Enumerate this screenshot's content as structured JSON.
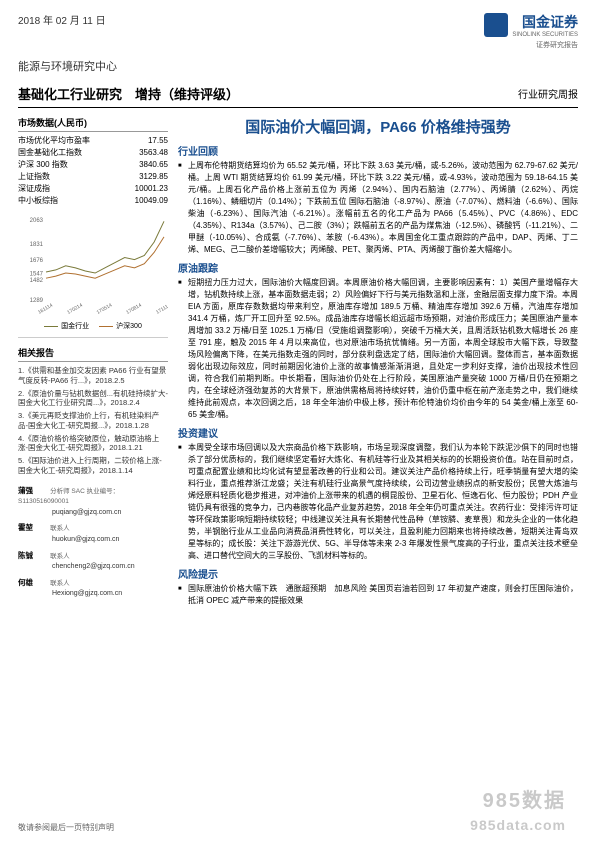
{
  "header": {
    "date": "2018 年 02 月 11 日",
    "logo_name": "国金证券",
    "logo_en": "SINOLINK SECURITIES",
    "logo_tag": "证券研究报告"
  },
  "center_name": "能源与环境研究中心",
  "title": "基础化工行业研究　增持（维持评级）",
  "report_type": "行业研究周报",
  "market": {
    "header": "市场数据(人民币)",
    "rows": [
      {
        "label": "市场优化平均市盈率",
        "value": "17.55"
      },
      {
        "label": "国金基础化工指数",
        "value": "3563.48"
      },
      {
        "label": "沪深 300 指数",
        "value": "3840.65"
      },
      {
        "label": "上证指数",
        "value": "3129.85"
      },
      {
        "label": "深证成指",
        "value": "10001.23"
      },
      {
        "label": "中小板综指",
        "value": "10049.09"
      }
    ]
  },
  "chart": {
    "ymin": 1289,
    "ymax": 2063,
    "yticks": [
      "2063",
      "1831",
      "1676",
      "1547",
      "1482",
      "1289"
    ],
    "xticks": [
      "161114",
      "170214",
      "170514",
      "170814",
      "171114"
    ],
    "series": [
      {
        "name": "国金行业",
        "color": "#7a7a3a",
        "points": [
          1560,
          1580,
          1620,
          1600,
          1570,
          1550,
          1600,
          1650,
          1700,
          1680,
          1720,
          1850,
          2050
        ]
      },
      {
        "name": "沪深300",
        "color": "#b07030",
        "points": [
          1500,
          1520,
          1550,
          1540,
          1520,
          1500,
          1540,
          1580,
          1620,
          1600,
          1640,
          1750,
          1900
        ]
      }
    ]
  },
  "related": {
    "header": "相关报告",
    "items": [
      "1.《供需和基金加交发因素 PA66 行业有望景气度反转-PA66 行...》，2018.2.5",
      "2.《原油价量与钻机数据创...有机硅持续扩大-国金大化工行业研究周...》，2018.2.4",
      "3.《美元再贬支撑油价上行，有机硅染料产品-国金大化工-研究周报...》，2018.1.28",
      "4.《原油价格价格突破原位，触动原油格上涨-国金大化工-研究周报》，2018.1.21",
      "5.《国际油价进入上行周期，二较价格上涨-国金大化工-研究周报》，2018.1.14"
    ]
  },
  "analysts": [
    {
      "name": "蒲强",
      "line1": "分析师 SAC 执业编号：S1130516090001",
      "line2": "puqiang@gjzq.com.cn"
    },
    {
      "name": "霍堃",
      "line1": "联系人",
      "line2": "huokun@gjzq.com.cn"
    },
    {
      "name": "陈铖",
      "line1": "联系人",
      "line2": "chencheng2@gjzq.com.cn"
    },
    {
      "name": "何雄",
      "line1": "联系人",
      "line2": "Hexiong@gjzq.com.cn"
    }
  ],
  "big_title": "国际油价大幅回调，PA66 价格维持强势",
  "sections": [
    {
      "heading": "行业回顾",
      "paragraphs": [
        "上周布伦特期货结算均价为 65.52 美元/桶，环比下跌 3.63 美元/桶，或-5.26%，波动范围为 62.79-67.62 美元/桶。上周 WTI 期货结算均价 61.99 美元/桶，环比下跌 3.22 美元/桶，或-4.93%，波动范围为 59.18-64.15 美元/桶。上周石化产品价格上涨前五位为 丙烯（2.94%）、国内石脑油（2.77%）、丙烯腈（2.62%）、丙烷（1.16%）、鳞细切片（0.14%）；下跌前五位 国际石脑油（-8.97%）、原油（-7.07%）、燃料油（-6.6%）、国际柴油（-6.23%）、国际汽油（-6.21%）。涨幅前五名的化工产品为 PA66（5.45%）、PVC（4.86%）、EDC（4.35%）、R134a（3.57%）、己二胺（3%）；跌幅前五名的产品为煤焦油（-12.5%）、磷酸钙（-11.21%）、二甲醚（-10.05%）、合成氨（-7.76%）、苯胺（-6.43%）。本周国金化工重点跟踪的产品中，DAP、丙烯、丁二烯、MEG、己二酸价差增幅较大；丙烯酸、PET、聚丙烯、PTA、丙烯酸丁酯价差大幅缩小。"
      ]
    },
    {
      "heading": "原油跟踪",
      "paragraphs": [
        "短期扭力压力过大，国际油价大幅度回调。本周原油价格大幅回调，主要影响因素有：1）美国产量增幅存大增，钻机数持续上涨，基本面数据走弱；2）风险偏好下行与美元指数温和上涨，金融层面支撑力度下滑。本周 EIA 方面，原库存数数据均带来利空，原油库存增加 189.5 万桶、精油库存增加 392.6 万桶，汽油库存增加 341.4 万桶，炼厂开工回升至 92.5%。成品油库存增幅长组远超市场预期，对油价形成压力；美国原油产量本周增加 33.2 万桶/日至 1025.1 万桶/日（受施组调整影响），突破千万桶大关，且周活跃钻机数大幅增长 26 座至 791 座，触及 2015 年 4 月以来高位，也对原油市场抗忧情绪。另一方面，本周全球股市大幅下跌，导致整场风险偏离下降，在美元指数走强的同时，部分获利盘选定了结，国际油价大幅回调。整体而言，基本面数据弱化出现边际效应，同时前期因化油价上涨的故事情感渐渐消退，且处定一步利好支撑，油价出现技术性回调，符合我们前期判断。中长期看，国际油价仍处在上行阶段，美国原油产量突破 1000 万桶/日仍在预期之内，在全球经济强劲复苏的大背景下，原油供需格局将持续好转，油价仍重中枢在前产涨走势之中，我们继续维持此前观点，本次回调之后，18 年全年油价中极上移，预计布伦特油价均价由今年的 54 美金/桶上涨至 60-65 美金/桶。"
      ]
    },
    {
      "heading": "投资建议",
      "paragraphs": [
        "本周受全球市场回调以及大宗商品价格下跌影响，市场呈现深度调整，我们认为本轮下跌泥沙俱下的同时也错杀了部分优质标的，我们继续坚定看好大炼化、有机硅等行业及其相关标的的长期投资价值。站在目前时点，可重点配置业绩和比均化试有望显著改善的行业和公司。建议关注产品价格持续上行，旺季销量有望大增的染料行业，重点推荐浙江龙盛；关注有机硅行业高景气度持续续，公司边营业绩拐点的新安股份；民营大炼油与烯烃原料轻质化稳步推进，对冲油价上涨带来的机遇的桐昆股份、卫星石化、恒逸石化、恒力股份；PDH 产业链仍具有很强的竞争力，己内巷胺等化品产业复苏趋势，2018 年全年仍可重点关注。农药行业：受排污许可证等环保政策影响短期持续较轻；中线建议关注具有长期替代性品种（草铵膦、麦草畏）和龙头企业的一体化趋势，半钢胎行业从工业品向消费品消费性转化，可以关注，且盈利能力回期来也将持续改善，短期关注青岛双星等标的；成长股：关注下游游光伏、5G、半导体等未来 2-3 年爆发性景气度高的子行业，重点关注技术壁垒高、进口替代空间大的三孚股份、飞凯材料等标的。"
      ]
    },
    {
      "heading": "风险提示",
      "paragraphs": [
        "国际原油价价格大幅下跌　通胀超预期　加息风险 美国页岩油若回到 17 年初复产速度，则会打压国际油价，抵消 OPEC 减产带来的提振效果"
      ]
    }
  ],
  "footer_left": "敬请参阅最后一页特别声明",
  "watermark": "985数据",
  "watermark_url": "985data.com"
}
